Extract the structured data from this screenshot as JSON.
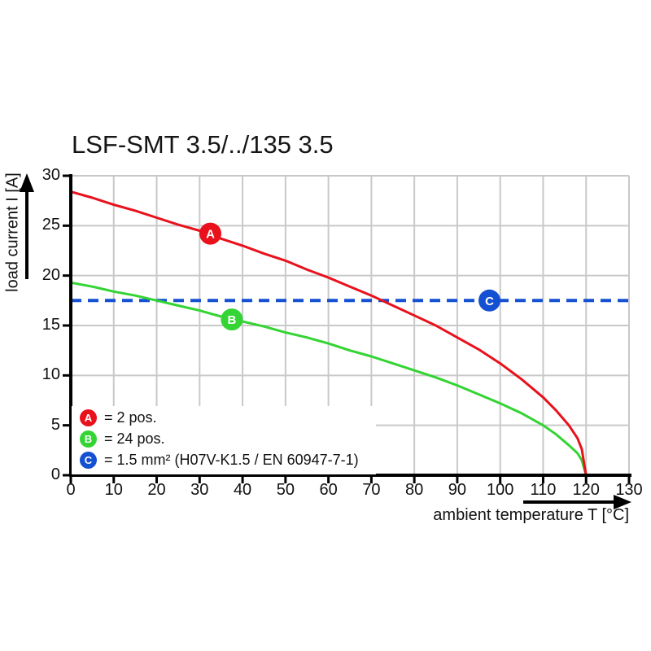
{
  "chart_data": {
    "type": "line",
    "title": "LSF-SMT 3.5/../135 3.5",
    "xlabel": "ambient temperature T [°C]",
    "ylabel": "load current I [A]",
    "xlim": [
      0,
      130
    ],
    "ylim": [
      0,
      30
    ],
    "xticks": [
      0,
      10,
      20,
      30,
      40,
      50,
      60,
      70,
      80,
      90,
      100,
      110,
      120,
      130
    ],
    "yticks": [
      0,
      5,
      10,
      15,
      20,
      25,
      30
    ],
    "grid": true,
    "grid_color": "#c9c9c9",
    "axis_color": "#000000",
    "legend_position": "bottom-left-inside",
    "series": [
      {
        "name": "A",
        "label": "= 2 pos.",
        "color": "#e8111c",
        "style": "solid",
        "points": [
          [
            0,
            28.4
          ],
          [
            5,
            27.8
          ],
          [
            10,
            27.1
          ],
          [
            15,
            26.5
          ],
          [
            20,
            25.8
          ],
          [
            25,
            25.1
          ],
          [
            30,
            24.5
          ],
          [
            35,
            23.7
          ],
          [
            40,
            23.0
          ],
          [
            45,
            22.2
          ],
          [
            50,
            21.5
          ],
          [
            55,
            20.6
          ],
          [
            60,
            19.8
          ],
          [
            65,
            18.9
          ],
          [
            70,
            18.0
          ],
          [
            75,
            17.0
          ],
          [
            80,
            16.0
          ],
          [
            85,
            15.0
          ],
          [
            90,
            13.8
          ],
          [
            95,
            12.6
          ],
          [
            100,
            11.2
          ],
          [
            105,
            9.6
          ],
          [
            110,
            7.8
          ],
          [
            113,
            6.5
          ],
          [
            116,
            5.0
          ],
          [
            118,
            3.7
          ],
          [
            119,
            2.6
          ],
          [
            120,
            0
          ]
        ]
      },
      {
        "name": "B",
        "label": "= 24 pos.",
        "color": "#33d433",
        "style": "solid",
        "points": [
          [
            0,
            19.3
          ],
          [
            5,
            18.9
          ],
          [
            10,
            18.4
          ],
          [
            15,
            18.0
          ],
          [
            20,
            17.5
          ],
          [
            25,
            17.0
          ],
          [
            30,
            16.5
          ],
          [
            35,
            15.9
          ],
          [
            40,
            15.4
          ],
          [
            45,
            14.9
          ],
          [
            50,
            14.3
          ],
          [
            55,
            13.8
          ],
          [
            60,
            13.2
          ],
          [
            65,
            12.5
          ],
          [
            70,
            11.9
          ],
          [
            75,
            11.2
          ],
          [
            80,
            10.5
          ],
          [
            85,
            9.8
          ],
          [
            90,
            9.0
          ],
          [
            95,
            8.1
          ],
          [
            100,
            7.2
          ],
          [
            105,
            6.2
          ],
          [
            110,
            5.0
          ],
          [
            113,
            4.1
          ],
          [
            116,
            3.0
          ],
          [
            118,
            2.2
          ],
          [
            119,
            1.5
          ],
          [
            120,
            0
          ]
        ]
      },
      {
        "name": "C",
        "label": "= 1.5 mm² (H07V-K1.5 / EN 60947-7-1)",
        "color": "#1450d2",
        "style": "dashed",
        "points": [
          [
            0,
            17.5
          ],
          [
            130,
            17.5
          ]
        ]
      }
    ],
    "markers": [
      {
        "label": "A",
        "x": 32.5,
        "y": 24.2,
        "color": "#e8111c"
      },
      {
        "label": "B",
        "x": 37.5,
        "y": 15.6,
        "color": "#33d433"
      },
      {
        "label": "C",
        "x": 97.5,
        "y": 17.5,
        "color": "#1450d2"
      }
    ]
  }
}
